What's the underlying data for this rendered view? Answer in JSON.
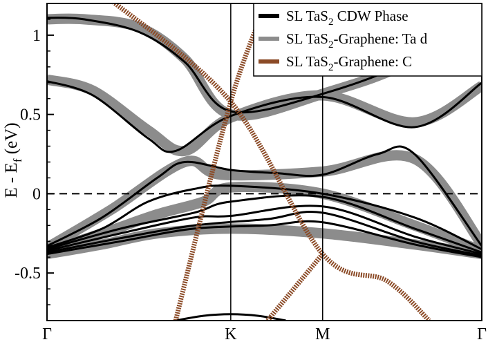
{
  "chart_data": {
    "type": "line",
    "title": "",
    "xlabel": "",
    "ylabel": {
      "base": "E - E",
      "sub": "f",
      "unit": " (eV)"
    },
    "ylim": [
      -0.8,
      1.2
    ],
    "yticks": [
      {
        "value": 1,
        "label": "1"
      },
      {
        "value": 0.5,
        "label": "0.5"
      },
      {
        "value": 0,
        "label": "0"
      },
      {
        "value": -0.5,
        "label": "-0.5"
      }
    ],
    "kpoints": [
      {
        "label": "Γ",
        "k": 0
      },
      {
        "label": "K",
        "k": 1.0
      },
      {
        "label": "M",
        "k": 1.5
      },
      {
        "label": "Γ",
        "k": 2.366
      }
    ],
    "fermi_level": 0,
    "grid": false,
    "legend": {
      "position": "top-right",
      "entries": [
        {
          "pre": "SL TaS",
          "sub": "2",
          "post": " CDW Phase",
          "color": "#000000"
        },
        {
          "pre": "SL TaS",
          "sub": "2",
          "post": "-Graphene: Ta d",
          "color": "#8c8c8c"
        },
        {
          "pre": "SL TaS",
          "sub": "2",
          "post": "-Graphene: C",
          "color": "#8b4a26"
        }
      ]
    },
    "series": [
      {
        "group": "SL TaS2-Graphene: Ta d",
        "color": "#8c8c8c",
        "style": "thick",
        "bands": [
          {
            "x": [
              0,
              0.2,
              0.5,
              0.75,
              1.0,
              1.5,
              2.0,
              2.366
            ],
            "y": [
              1.1,
              1.1,
              1.05,
              0.85,
              0.5,
              0.63,
              0.85,
              1.22
            ]
          },
          {
            "x": [
              0,
              0.25,
              0.55,
              0.75,
              1.0,
              1.5,
              2.0,
              2.366
            ],
            "y": [
              0.72,
              0.65,
              0.4,
              0.27,
              0.48,
              0.62,
              0.45,
              0.68
            ]
          },
          {
            "x": [
              0,
              0.35,
              0.75,
              0.95,
              1.5,
              2.0,
              2.366
            ],
            "y": [
              -0.34,
              -0.1,
              0.2,
              0.12,
              0.14,
              0.22,
              -0.32
            ]
          },
          {
            "x": [
              0,
              0.3,
              0.6,
              0.85,
              1.0,
              1.5,
              2.0,
              2.366
            ],
            "y": [
              -0.36,
              -0.25,
              -0.13,
              -0.05,
              0.04,
              0.0,
              -0.2,
              -0.36
            ]
          },
          {
            "x": [
              0,
              0.3,
              0.6,
              1.0,
              1.5,
              2.0,
              2.366
            ],
            "y": [
              -0.38,
              -0.32,
              -0.25,
              -0.22,
              -0.25,
              -0.32,
              -0.38
            ]
          }
        ]
      },
      {
        "group": "SL TaS2 CDW Phase",
        "color": "#000000",
        "style": "thin",
        "bands": [
          {
            "x": [
              0,
              0.2,
              0.5,
              0.75,
              1.0,
              1.5,
              2.0,
              2.366
            ],
            "y": [
              1.11,
              1.1,
              1.02,
              0.83,
              0.52,
              0.63,
              0.86,
              1.23
            ]
          },
          {
            "x": [
              0,
              0.25,
              0.55,
              0.7,
              1.0,
              1.5,
              2.0,
              2.366
            ],
            "y": [
              0.71,
              0.62,
              0.35,
              0.27,
              0.49,
              0.61,
              0.42,
              0.7
            ]
          },
          {
            "x": [
              0,
              0.3,
              0.6,
              0.75,
              1.0,
              1.25,
              1.5,
              1.8,
              2.0,
              2.366
            ],
            "y": [
              -0.33,
              -0.15,
              0.1,
              0.2,
              0.15,
              0.13,
              0.12,
              0.25,
              0.25,
              -0.33
            ]
          },
          {
            "x": [
              0,
              0.3,
              0.55,
              0.8,
              1.0,
              1.5,
              2.0,
              2.366
            ],
            "y": [
              -0.34,
              -0.22,
              -0.05,
              0.03,
              0.05,
              0.0,
              -0.15,
              -0.35
            ]
          },
          {
            "x": [
              0,
              0.4,
              0.8,
              1.0,
              1.5,
              2.0,
              2.366
            ],
            "y": [
              -0.35,
              -0.22,
              -0.12,
              -0.05,
              -0.02,
              -0.22,
              -0.37
            ]
          },
          {
            "x": [
              0,
              0.4,
              0.8,
              1.0,
              1.5,
              2.0,
              2.366
            ],
            "y": [
              -0.36,
              -0.25,
              -0.15,
              -0.14,
              -0.08,
              -0.27,
              -0.38
            ]
          },
          {
            "x": [
              0,
              0.4,
              0.8,
              1.2,
              1.5,
              2.0,
              2.366
            ],
            "y": [
              -0.37,
              -0.28,
              -0.2,
              -0.16,
              -0.12,
              -0.3,
              -0.39
            ]
          },
          {
            "x": [
              0,
              0.4,
              0.8,
              1.2,
              1.5,
              2.0,
              2.366
            ],
            "y": [
              -0.38,
              -0.3,
              -0.22,
              -0.2,
              -0.18,
              -0.32,
              -0.4
            ]
          },
          {
            "x": [
              0.7,
              0.85,
              1.0,
              1.15,
              1.3
            ],
            "y": [
              -0.8,
              -0.77,
              -0.76,
              -0.77,
              -0.8
            ]
          }
        ]
      },
      {
        "group": "SL TaS2-Graphene: C",
        "color": "#8b4a26",
        "style": "medium",
        "bands": [
          {
            "x": [
              0.35,
              1.0,
              1.5,
              1.85,
              2.08
            ],
            "y": [
              1.22,
              0.58,
              -0.38,
              -0.55,
              -0.8
            ]
          },
          {
            "x": [
              0.7,
              1.0,
              1.2
            ],
            "y": [
              -0.8,
              0.58,
              1.22
            ]
          },
          {
            "x": [
              1.2,
              1.5
            ],
            "y": [
              -0.8,
              -0.38
            ]
          }
        ]
      }
    ]
  }
}
